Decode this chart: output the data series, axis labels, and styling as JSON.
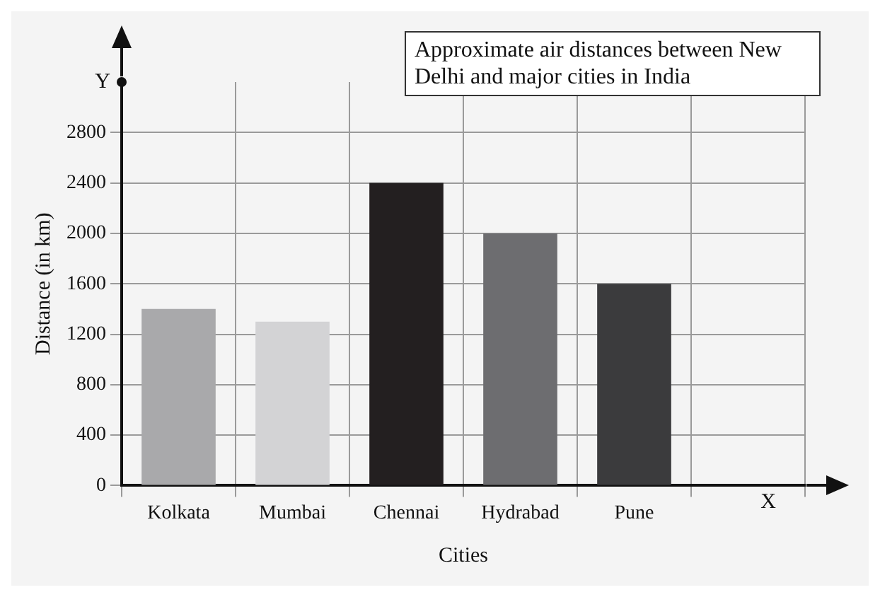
{
  "chart_data": {
    "type": "bar",
    "title": "Approximate air distances between New Delhi and major cities in India",
    "xlabel": "Cities",
    "ylabel": "Distance (in km)",
    "categories": [
      "Kolkata",
      "Mumbai",
      "Chennai",
      "Hydrabad",
      "Pune",
      null
    ],
    "values": [
      1400,
      1300,
      2400,
      2000,
      1600,
      null
    ],
    "colors": [
      "#a9a9ab",
      "#d3d3d5",
      "#231f20",
      "#6d6d70",
      "#3b3b3d",
      "#000000"
    ],
    "ylim": [
      0,
      3200
    ],
    "yticks": [
      0,
      400,
      800,
      1200,
      1600,
      2000,
      2400,
      2800
    ],
    "annotations": [
      "X",
      "Y"
    ],
    "grid": true
  }
}
